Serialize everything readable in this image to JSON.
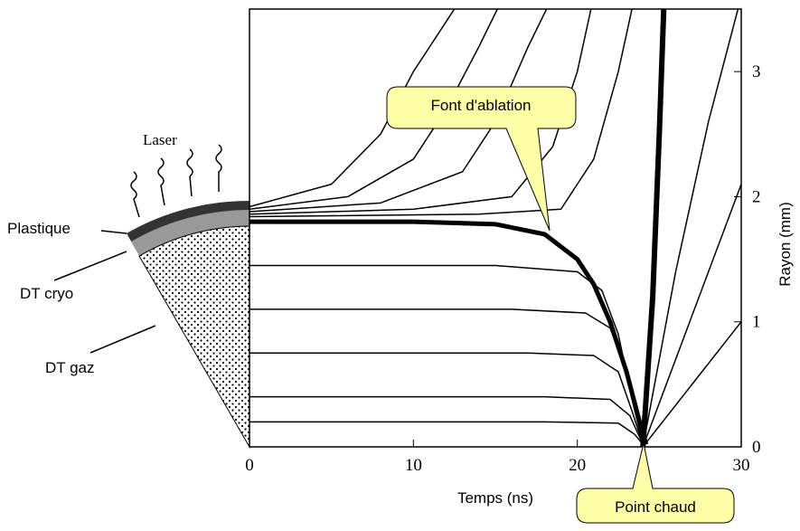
{
  "chart_data": {
    "type": "line",
    "xlabel": "Temps (ns)",
    "ylabel": "Rayon (mm)",
    "xlim": [
      0,
      30
    ],
    "ylim": [
      0,
      3.5
    ],
    "xticks": [
      0,
      10,
      20,
      30
    ],
    "yticks": [
      0,
      1,
      2,
      3
    ],
    "color": "#000000",
    "annotations": [
      "Laser",
      "Plastique",
      "DT cryo",
      "DT gaz",
      "Font d'ablation",
      "Point chaud"
    ],
    "series": [
      {
        "linewidth": 5,
        "x": [
          0,
          5,
          10,
          15,
          18,
          20,
          21,
          22,
          23,
          23.8,
          24.2
        ],
        "values": [
          1.8,
          1.8,
          1.8,
          1.78,
          1.7,
          1.5,
          1.3,
          1.0,
          0.6,
          0.2,
          0.02
        ]
      },
      {
        "linewidth": 1.5,
        "x": [
          0,
          15,
          20,
          21.5,
          22.5,
          23.3,
          24
        ],
        "values": [
          1.45,
          1.45,
          1.4,
          1.25,
          0.9,
          0.4,
          0.02
        ]
      },
      {
        "linewidth": 1.5,
        "x": [
          0,
          16,
          20.5,
          22,
          23,
          23.6,
          24
        ],
        "values": [
          1.1,
          1.1,
          1.07,
          0.95,
          0.6,
          0.25,
          0.02
        ]
      },
      {
        "linewidth": 1.5,
        "x": [
          0,
          17,
          21,
          22.5,
          23.3,
          24
        ],
        "values": [
          0.75,
          0.75,
          0.73,
          0.6,
          0.3,
          0.02
        ]
      },
      {
        "linewidth": 1.5,
        "x": [
          0,
          18,
          22,
          23.2,
          24
        ],
        "values": [
          0.4,
          0.4,
          0.38,
          0.25,
          0.02
        ]
      },
      {
        "linewidth": 1.5,
        "x": [
          0,
          18,
          22.5,
          23.5,
          24
        ],
        "values": [
          0.2,
          0.2,
          0.19,
          0.1,
          0.02
        ]
      },
      {
        "linewidth": 1.5,
        "x": [
          0,
          5,
          8,
          10,
          11.5,
          13
        ],
        "values": [
          1.92,
          2.1,
          2.5,
          3.0,
          3.3,
          3.6
        ]
      },
      {
        "linewidth": 1.5,
        "x": [
          0,
          6,
          10,
          12,
          14,
          15.5
        ],
        "values": [
          1.9,
          2.0,
          2.3,
          2.7,
          3.2,
          3.6
        ]
      },
      {
        "linewidth": 1.5,
        "x": [
          0,
          8,
          13,
          15,
          17,
          18.5
        ],
        "values": [
          1.88,
          1.95,
          2.2,
          2.6,
          3.2,
          3.6
        ]
      },
      {
        "linewidth": 1.5,
        "x": [
          0,
          10,
          16,
          18.5,
          20,
          21
        ],
        "values": [
          1.86,
          1.9,
          2.0,
          2.4,
          3.0,
          3.6
        ]
      },
      {
        "linewidth": 1.5,
        "x": [
          0,
          14,
          19,
          21,
          22.5,
          23.5
        ],
        "values": [
          1.84,
          1.86,
          1.9,
          2.3,
          3.0,
          3.6
        ]
      },
      {
        "linewidth": 6,
        "x": [
          24,
          24.6,
          25,
          25.3
        ],
        "values": [
          0,
          1.2,
          2.5,
          3.6
        ]
      },
      {
        "linewidth": 1.5,
        "x": [
          24,
          26,
          28,
          30
        ],
        "values": [
          0,
          0.7,
          1.4,
          2.1
        ]
      },
      {
        "linewidth": 1.5,
        "x": [
          24,
          27,
          30
        ],
        "values": [
          0,
          0.5,
          1.0
        ]
      },
      {
        "linewidth": 1.5,
        "x": [
          24,
          26,
          28,
          30
        ],
        "values": [
          0,
          1.4,
          2.6,
          3.6
        ]
      }
    ]
  }
}
